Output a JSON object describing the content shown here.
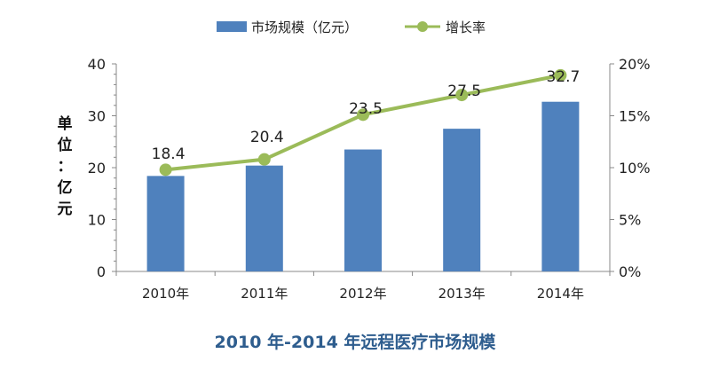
{
  "chart_data": {
    "type": "bar+line",
    "title": "2010 年-2014 年远程医疗市场规模",
    "categories": [
      "2010年",
      "2011年",
      "2012年",
      "2013年",
      "2014年"
    ],
    "ylabel": "单位：亿元",
    "ylabel_chars": [
      "单",
      "位",
      "：",
      "亿",
      "元"
    ],
    "ylim": [
      0,
      40
    ],
    "yticks": [
      "0",
      "10",
      "20",
      "30",
      "40"
    ],
    "y2lim": [
      0,
      20
    ],
    "y2ticks": [
      "0%",
      "5%",
      "10%",
      "15%",
      "20%"
    ],
    "legend_position": "top",
    "grid": false,
    "series": [
      {
        "name": "市场规模（亿元）",
        "type": "bar",
        "color": "#4F81BD",
        "values": [
          18.4,
          20.4,
          23.5,
          27.5,
          32.7
        ],
        "labels": [
          "18.4",
          "20.4",
          "23.5",
          "27.5",
          "32.7"
        ]
      },
      {
        "name": "增长率",
        "type": "line",
        "axis": "right",
        "color": "#9BBB59",
        "values": [
          9.8,
          10.8,
          15.1,
          17.0,
          18.9
        ]
      }
    ]
  }
}
